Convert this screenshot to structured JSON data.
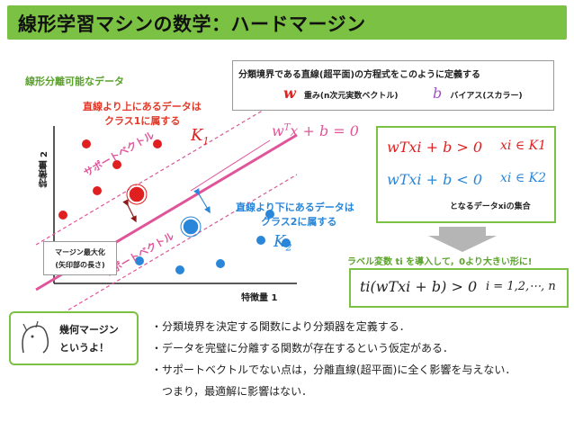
{
  "title": "線形学習マシンの数学：ハードマージン",
  "diagram": {
    "separable_label": "線形分離可能なデータ",
    "above_label_line1": "直線より上にあるデータは",
    "above_label_line2": "クラス1に属する",
    "below_label_line1": "直線より下にあるデータは",
    "below_label_line2": "クラス2に属する",
    "k1_label": "K",
    "k1_sub": "1",
    "k2_label": "K",
    "k2_sub": "2",
    "hyperplane_eq": "w",
    "hyperplane_eq_sup": "T",
    "hyperplane_eq_rest": "x + b = 0",
    "sv_label_upper": "サポートベクトル",
    "sv_label_lower": "サポートベクトル",
    "x1_label": "特徴量 1",
    "x2_label": "特徴量 2",
    "margin_line1": "マージン最大化",
    "margin_line2": "(矢印部の長さ)",
    "class1_color": "#e02020",
    "class2_color": "#2a86d8",
    "hyperplane_color": "#e0559a"
  },
  "definition": {
    "heading": "分類境界である直線(超平面)の方程式をこのように定義する",
    "w_symbol": "w",
    "w_desc": "重み(n次元実数ベクトル)",
    "b_symbol": "b",
    "b_desc": "バイアス(スカラー)"
  },
  "result": {
    "ineq1": "wTxi + b > 0",
    "ineq1_set": "xi ∈ K1",
    "ineq2": "wTxi + b < 0",
    "ineq2_set": "xi ∈ K2",
    "caption": "となるデータxiの集合"
  },
  "label_intro": "ラベル変数 ti を導入して，0より大きい形に!",
  "label_formula": "ti(wTxi + b) > 0",
  "label_range": "i = 1,2,⋯, n",
  "bubble": {
    "line1": "幾何マージン",
    "line2": "というよ！"
  },
  "bullets": [
    "・分類境界を決定する関数により分類器を定義する．",
    "・データを完璧に分離する関数が存在するという仮定がある．",
    "・サポートベクトルでない点は，分離直線(超平面)に全く影響を与えない．",
    "　つまり，最適解に影響はない．"
  ]
}
